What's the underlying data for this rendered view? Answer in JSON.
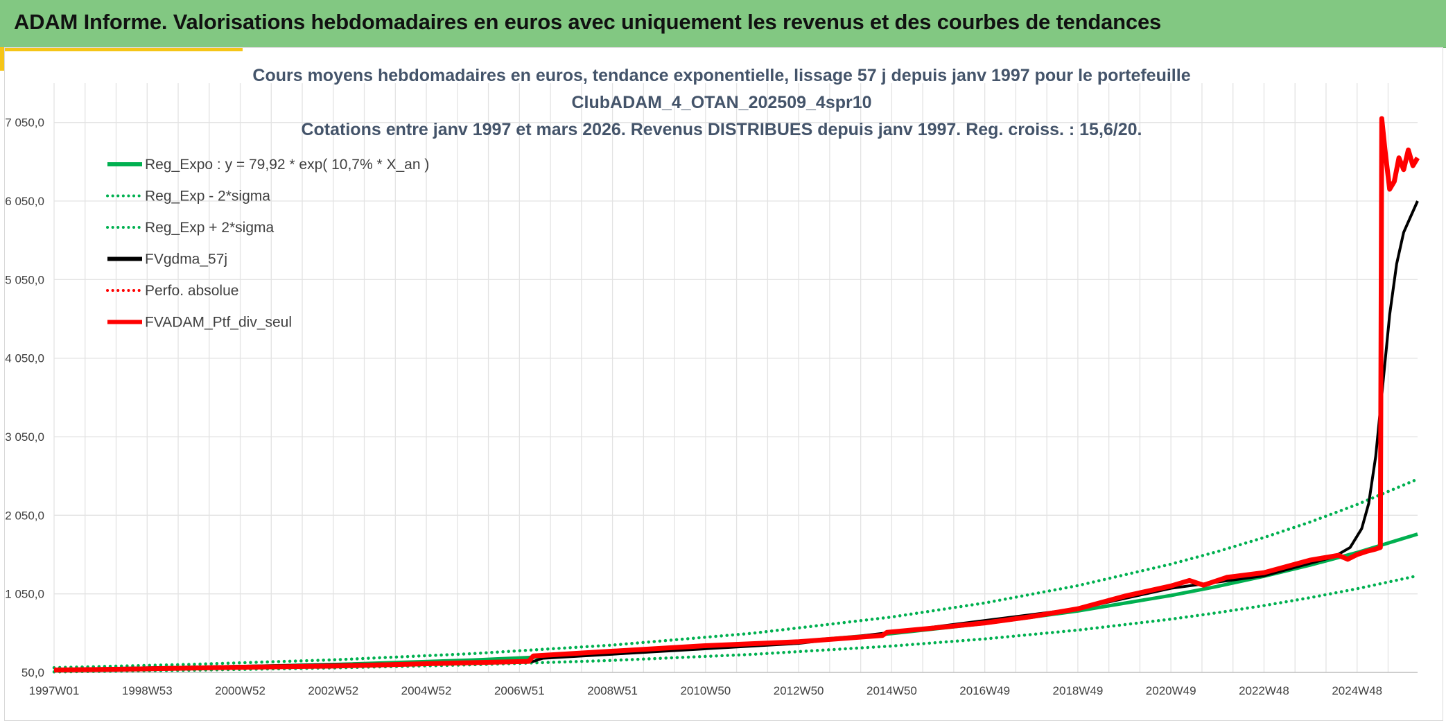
{
  "page": {
    "header_title": "ADAM Informe. Valorisations hebdomadaires en euros avec uniquement les revenus et des courbes de tendances"
  },
  "chart_data": {
    "type": "line",
    "title": "Cours moyens hebdomadaires en euros, tendance exponentielle, lissage 57 j depuis janv 1997 pour le portefeuille",
    "subtitle": "ClubADAM_4_OTAN_202509_4spr10",
    "subtitle2": "Cotations entre janv 1997 et mars 2026. Revenus DISTRIBUES depuis janv 1997. Reg. croiss. : 15,6/20.",
    "xlim": [
      1997.0,
      2026.3
    ],
    "ylim": [
      50,
      7550
    ],
    "grid": true,
    "legend_position": "top-left",
    "y_ticks": [
      50,
      1050,
      2050,
      3050,
      4050,
      5050,
      6050,
      7050
    ],
    "y_tick_labels": [
      "50,0",
      "1 050,0",
      "2 050,0",
      "3 050,0",
      "4 050,0",
      "5 050,0",
      "6 050,0",
      "7 050,0"
    ],
    "x_ticks": [
      1997.0,
      1999.0,
      2001.0,
      2003.0,
      2005.0,
      2007.0,
      2009.0,
      2011.0,
      2013.0,
      2015.0,
      2017.0,
      2019.0,
      2021.0,
      2023.0,
      2025.0
    ],
    "x_tick_labels": [
      "1997W01",
      "1998W53",
      "2000W52",
      "2002W52",
      "2004W52",
      "2006W51",
      "2008W51",
      "2010W50",
      "2012W50",
      "2014W50",
      "2016W49",
      "2018W49",
      "2020W49",
      "2022W48",
      "2024W48"
    ],
    "series": [
      {
        "name": "Reg_Expo : y = 79,92 * exp( 10,7% *  X_an )",
        "color": "#00b050",
        "style": "solid",
        "x": [
          1997.0,
          2000.0,
          2003.0,
          2006.0,
          2009.0,
          2012.0,
          2015.0,
          2017.0,
          2019.0,
          2021.0,
          2022.0,
          2023.0,
          2024.0,
          2025.0,
          2026.3
        ],
        "y": [
          80,
          110,
          151,
          208,
          287,
          395,
          544,
          673,
          832,
          1029,
          1145,
          1274,
          1417,
          1576,
          1810
        ]
      },
      {
        "name": "Reg_Exp - 2*sigma",
        "color": "#00b050",
        "style": "dotted",
        "x": [
          1997.0,
          2000.0,
          2003.0,
          2006.0,
          2009.0,
          2012.0,
          2015.0,
          2017.0,
          2019.0,
          2021.0,
          2022.0,
          2023.0,
          2024.0,
          2025.0,
          2026.3
        ],
        "y": [
          56,
          78,
          107,
          147,
          203,
          279,
          385,
          476,
          588,
          728,
          810,
          901,
          1002,
          1115,
          1280
        ]
      },
      {
        "name": "Reg_Exp + 2*sigma",
        "color": "#00b050",
        "style": "dotted",
        "x": [
          1997.0,
          2000.0,
          2003.0,
          2006.0,
          2009.0,
          2012.0,
          2015.0,
          2017.0,
          2019.0,
          2021.0,
          2022.0,
          2023.0,
          2024.0,
          2025.0,
          2026.3
        ],
        "y": [
          110,
          153,
          210,
          289,
          398,
          548,
          755,
          934,
          1155,
          1428,
          1588,
          1767,
          1966,
          2187,
          2510
        ]
      },
      {
        "name": "FVgdma_57j",
        "color": "#000000",
        "style": "solid",
        "x": [
          1997.0,
          2007.3,
          2007.5,
          2013.0,
          2015.0,
          2019.0,
          2021.0,
          2023.0,
          2024.5,
          2024.85,
          2025.1,
          2025.25,
          2025.4,
          2025.55,
          2025.7,
          2025.85,
          2026.0,
          2026.15,
          2026.3
        ],
        "y": [
          90,
          190,
          230,
          420,
          560,
          860,
          1120,
          1280,
          1520,
          1640,
          1880,
          2200,
          2800,
          3700,
          4600,
          5250,
          5650,
          5850,
          6050
        ]
      },
      {
        "name": "Perfo. absolue",
        "color": "#ff0000",
        "style": "dotted",
        "x": [],
        "y": []
      },
      {
        "name": "FVADAM_Ptf_div_seul",
        "color": "#ff0000",
        "style": "solid",
        "x": [
          1997.0,
          1999.0,
          2001.0,
          2003.0,
          2005.0,
          2007.2,
          2007.3,
          2009.0,
          2011.0,
          2013.0,
          2014.8,
          2014.9,
          2016.0,
          2017.0,
          2018.0,
          2019.0,
          2020.0,
          2021.0,
          2021.4,
          2021.7,
          2022.2,
          2023.0,
          2023.5,
          2024.0,
          2024.4,
          2024.6,
          2024.8,
          2025.0,
          2025.2,
          2025.4,
          2025.5,
          2025.53,
          2025.6,
          2025.7,
          2025.8,
          2025.9,
          2026.0,
          2026.1,
          2026.2,
          2026.3
        ],
        "y": [
          80,
          95,
          115,
          130,
          160,
          190,
          260,
          320,
          390,
          440,
          520,
          560,
          620,
          680,
          760,
          860,
          1020,
          1150,
          1220,
          1160,
          1260,
          1320,
          1400,
          1480,
          1520,
          1540,
          1490,
          1550,
          1590,
          1620,
          1640,
          7100,
          6700,
          6200,
          6300,
          6600,
          6450,
          6700,
          6500,
          6600
        ]
      }
    ]
  }
}
